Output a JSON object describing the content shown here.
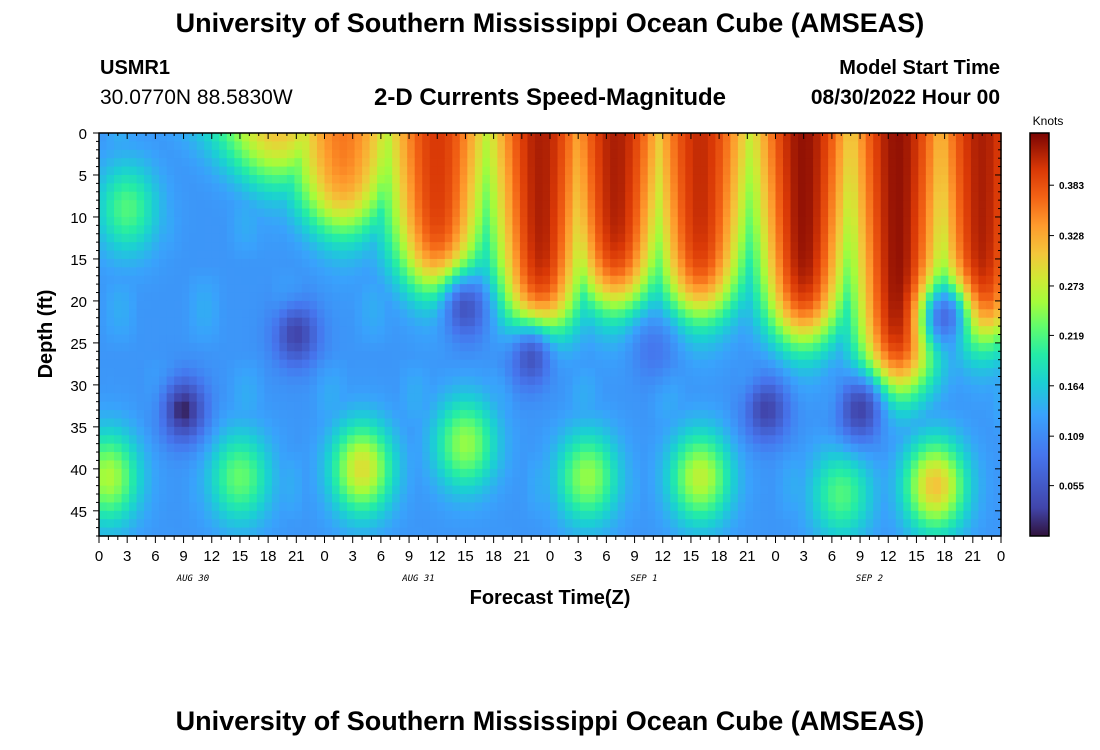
{
  "header": {
    "title": "University of Southern Mississippi Ocean Cube (AMSEAS)",
    "station_id": "USMR1",
    "coordinates": "30.0770N  88.5830W",
    "chart_title": "2-D Currents Speed-Magnitude",
    "model_start_label": "Model Start Time",
    "model_start_value": "08/30/2022 Hour 00"
  },
  "footer": {
    "title": "University of Southern Mississippi Ocean Cube (AMSEAS)"
  },
  "chart_data": {
    "type": "heatmap",
    "title": "2-D Currents Speed-Magnitude",
    "xlabel": "Forecast Time(Z)",
    "ylabel": "Depth (ft)",
    "x_hours_range": [
      0,
      96
    ],
    "x_tick_labels": [
      "0",
      "3",
      "6",
      "9",
      "12",
      "15",
      "18",
      "21",
      "0",
      "3",
      "6",
      "9",
      "12",
      "15",
      "18",
      "21",
      "0",
      "3",
      "6",
      "9",
      "12",
      "15",
      "18",
      "21",
      "0",
      "3",
      "6",
      "9",
      "12",
      "15",
      "18",
      "21",
      "0"
    ],
    "date_labels": [
      {
        "label": "AUG 30",
        "hour": 10
      },
      {
        "label": "AUG 31",
        "hour": 34
      },
      {
        "label": "SEP 1",
        "hour": 58
      },
      {
        "label": "SEP 2",
        "hour": 82
      }
    ],
    "y_range": [
      0,
      48
    ],
    "y_ticks": [
      0,
      5,
      10,
      15,
      20,
      25,
      30,
      35,
      40,
      45
    ],
    "colorbar": {
      "label": "Knots",
      "min": 0,
      "max": 0.44,
      "ticks": [
        0.055,
        0.109,
        0.164,
        0.219,
        0.273,
        0.328,
        0.383
      ]
    },
    "surface_blobs": [
      {
        "hour": 19,
        "depth_max": 5,
        "speed": 0.33
      },
      {
        "hour": 26,
        "depth_max": 11,
        "speed": 0.36
      },
      {
        "hour": 36,
        "depth_max": 18,
        "speed": 0.4
      },
      {
        "hour": 47,
        "depth_max": 23,
        "speed": 0.42
      },
      {
        "hour": 55,
        "depth_max": 20,
        "speed": 0.42
      },
      {
        "hour": 64,
        "depth_max": 21,
        "speed": 0.41
      },
      {
        "hour": 75,
        "depth_max": 24,
        "speed": 0.43
      },
      {
        "hour": 85,
        "depth_max": 30,
        "speed": 0.43
      },
      {
        "hour": 94,
        "depth_max": 24,
        "speed": 0.42
      }
    ],
    "deep_blobs": [
      {
        "hour": 1,
        "depth": 41,
        "speed": 0.26
      },
      {
        "hour": 15,
        "depth": 41,
        "speed": 0.23
      },
      {
        "hour": 28,
        "depth": 40,
        "speed": 0.29
      },
      {
        "hour": 39,
        "depth": 37,
        "speed": 0.25
      },
      {
        "hour": 52,
        "depth": 41,
        "speed": 0.25
      },
      {
        "hour": 64,
        "depth": 41,
        "speed": 0.27
      },
      {
        "hour": 79,
        "depth": 43,
        "speed": 0.22
      },
      {
        "hour": 89,
        "depth": 42,
        "speed": 0.31
      },
      {
        "hour": 3,
        "depth": 9,
        "speed": 0.22
      }
    ],
    "low_spots": [
      {
        "hour": 9,
        "depth": 33,
        "speed": 0.01
      },
      {
        "hour": 21,
        "depth": 24,
        "speed": 0.03
      },
      {
        "hour": 39,
        "depth": 21,
        "speed": 0.05
      },
      {
        "hour": 46,
        "depth": 27,
        "speed": 0.05
      },
      {
        "hour": 71,
        "depth": 33,
        "speed": 0.03
      },
      {
        "hour": 81,
        "depth": 33,
        "speed": 0.03
      },
      {
        "hour": 90,
        "depth": 22,
        "speed": 0.08
      },
      {
        "hour": 59,
        "depth": 26,
        "speed": 0.09
      }
    ]
  }
}
